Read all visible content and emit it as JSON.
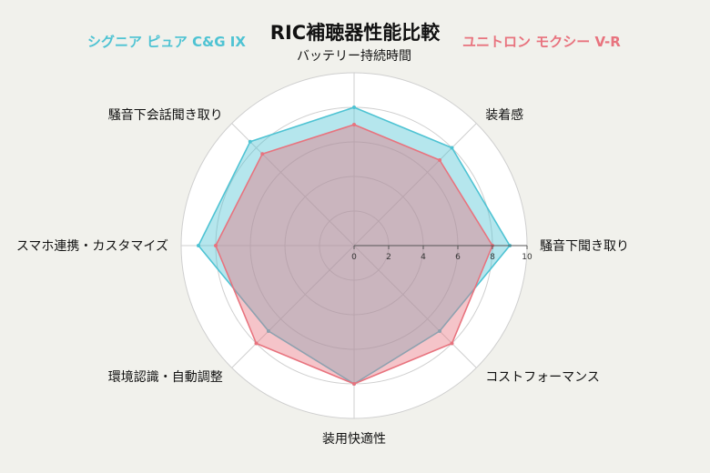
{
  "colors": {
    "series_a": "#4ec3d3",
    "series_b": "#e8737e",
    "grid": "#cfcfcf",
    "ring_bg": "#ffffff",
    "tick_axis": "#555555"
  },
  "chart_data": {
    "type": "radar",
    "title": "RIC補聴器性能比較",
    "categories": [
      "バッテリー持続時間",
      "装着感",
      "騒音下聞き取り",
      "コストフォーマンス",
      "装用快適性",
      "環境認識・自動調整",
      "スマホ連携・カスタマイズ",
      "騒音下会話聞き取り"
    ],
    "radial_ticks": [
      0,
      2,
      4,
      6,
      8,
      10
    ],
    "rlim": [
      0,
      10
    ],
    "legend_placement": "top",
    "series": [
      {
        "name": "シグニア ピュア C&G IX",
        "color": "#4ec3d3",
        "values": [
          8,
          8,
          9,
          7,
          8,
          7,
          9,
          8.5
        ]
      },
      {
        "name": "ユニトロン モクシー V-R",
        "color": "#e8737e",
        "values": [
          7,
          7,
          8,
          8,
          8,
          8,
          8,
          7.5
        ]
      }
    ]
  }
}
